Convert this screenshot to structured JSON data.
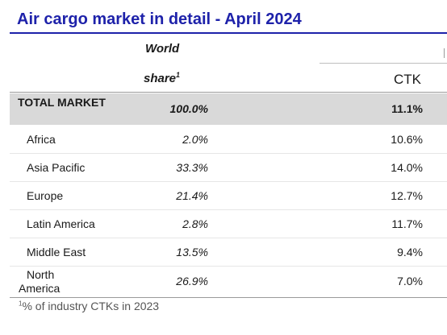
{
  "title": "Air cargo market in detail - April 2024",
  "header": {
    "world_label": "World",
    "share_label": "share",
    "share_sup": "1",
    "ctk_label": "CTK"
  },
  "total": {
    "label": "TOTAL MARKET",
    "share": "100.0%",
    "ctk": "11.1%"
  },
  "rows": [
    {
      "region": "Africa",
      "share": "2.0%",
      "ctk": "10.6%"
    },
    {
      "region": "Asia Pacific",
      "share": "33.3%",
      "ctk": "14.0%"
    },
    {
      "region": "Europe",
      "share": "21.4%",
      "ctk": "12.7%"
    },
    {
      "region": "Latin America",
      "share": "2.8%",
      "ctk": "11.7%"
    },
    {
      "region": "Middle East",
      "share": "13.5%",
      "ctk": "9.4%"
    },
    {
      "region_line1": "North",
      "region_line2": "America",
      "share": "26.9%",
      "ctk": "7.0%"
    }
  ],
  "footnote": {
    "sup": "1",
    "text": "% of industry CTKs in 2023"
  },
  "colors": {
    "title": "#1e22aa",
    "total_row_bg": "#d9d9d9"
  }
}
